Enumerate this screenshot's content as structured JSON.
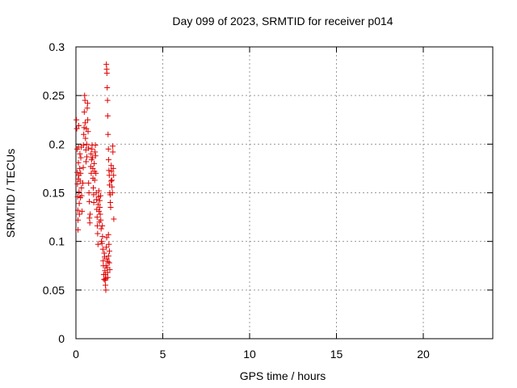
{
  "chart_data": {
    "type": "scatter",
    "title": "Day 099 of 2023, SRMTID for receiver p014",
    "xlabel": "GPS time / hours",
    "ylabel": "SRMTID / TECUs",
    "xlim": [
      0,
      24
    ],
    "ylim": [
      0,
      0.3
    ],
    "xticks": [
      "0",
      "5",
      "10",
      "15",
      "20"
    ],
    "yticks": [
      "0",
      "0.05",
      "0.1",
      "0.15",
      "0.2",
      "0.25",
      "0.3"
    ],
    "grid": true,
    "marker": "+",
    "color": "#e00000",
    "points": [
      [
        0.03,
        0.225
      ],
      [
        0.05,
        0.216
      ],
      [
        0.07,
        0.195
      ],
      [
        0.08,
        0.171
      ],
      [
        0.09,
        0.159
      ],
      [
        0.1,
        0.146
      ],
      [
        0.11,
        0.132
      ],
      [
        0.12,
        0.122
      ],
      [
        0.12,
        0.112
      ],
      [
        0.13,
        0.164
      ],
      [
        0.14,
        0.181
      ],
      [
        0.15,
        0.197
      ],
      [
        0.16,
        0.219
      ],
      [
        0.17,
        0.168
      ],
      [
        0.18,
        0.151
      ],
      [
        0.19,
        0.139
      ],
      [
        0.2,
        0.128
      ],
      [
        0.22,
        0.175
      ],
      [
        0.23,
        0.19
      ],
      [
        0.24,
        0.162
      ],
      [
        0.25,
        0.145
      ],
      [
        0.27,
        0.17
      ],
      [
        0.28,
        0.186
      ],
      [
        0.3,
        0.197
      ],
      [
        0.32,
        0.155
      ],
      [
        0.33,
        0.147
      ],
      [
        0.35,
        0.131
      ],
      [
        0.4,
        0.16
      ],
      [
        0.42,
        0.176
      ],
      [
        0.43,
        0.199
      ],
      [
        0.45,
        0.21
      ],
      [
        0.47,
        0.217
      ],
      [
        0.48,
        0.233
      ],
      [
        0.5,
        0.25
      ],
      [
        0.52,
        0.245
      ],
      [
        0.53,
        0.222
      ],
      [
        0.55,
        0.206
      ],
      [
        0.57,
        0.194
      ],
      [
        0.58,
        0.182
      ],
      [
        0.6,
        0.216
      ],
      [
        0.62,
        0.2
      ],
      [
        0.63,
        0.187
      ],
      [
        0.65,
        0.237
      ],
      [
        0.67,
        0.242
      ],
      [
        0.68,
        0.225
      ],
      [
        0.7,
        0.213
      ],
      [
        0.72,
        0.196
      ],
      [
        0.73,
        0.16
      ],
      [
        0.75,
        0.15
      ],
      [
        0.77,
        0.141
      ],
      [
        0.78,
        0.124
      ],
      [
        0.8,
        0.119
      ],
      [
        0.82,
        0.128
      ],
      [
        0.85,
        0.177
      ],
      [
        0.87,
        0.19
      ],
      [
        0.88,
        0.17
      ],
      [
        0.9,
        0.184
      ],
      [
        0.92,
        0.195
      ],
      [
        0.93,
        0.199
      ],
      [
        0.95,
        0.186
      ],
      [
        0.97,
        0.175
      ],
      [
        0.98,
        0.165
      ],
      [
        1.0,
        0.155
      ],
      [
        1.02,
        0.148
      ],
      [
        1.03,
        0.14
      ],
      [
        1.05,
        0.18
      ],
      [
        1.07,
        0.172
      ],
      [
        1.08,
        0.163
      ],
      [
        1.1,
        0.192
      ],
      [
        1.12,
        0.199
      ],
      [
        1.13,
        0.188
      ],
      [
        1.15,
        0.17
      ],
      [
        1.17,
        0.15
      ],
      [
        1.18,
        0.143
      ],
      [
        1.2,
        0.133
      ],
      [
        1.22,
        0.125
      ],
      [
        1.23,
        0.116
      ],
      [
        1.25,
        0.108
      ],
      [
        1.27,
        0.097
      ],
      [
        1.28,
        0.138
      ],
      [
        1.3,
        0.146
      ],
      [
        1.32,
        0.152
      ],
      [
        1.33,
        0.131
      ],
      [
        1.35,
        0.12
      ],
      [
        1.37,
        0.142
      ],
      [
        1.38,
        0.135
      ],
      [
        1.4,
        0.128
      ],
      [
        1.42,
        0.147
      ],
      [
        1.43,
        0.122
      ],
      [
        1.45,
        0.113
      ],
      [
        1.47,
        0.1
      ],
      [
        1.5,
        0.098
      ],
      [
        1.52,
        0.116
      ],
      [
        1.53,
        0.105
      ],
      [
        1.55,
        0.092
      ],
      [
        1.57,
        0.08
      ],
      [
        1.58,
        0.075
      ],
      [
        1.6,
        0.066
      ],
      [
        1.62,
        0.061
      ],
      [
        1.63,
        0.088
      ],
      [
        1.65,
        0.084
      ],
      [
        1.67,
        0.07
      ],
      [
        1.68,
        0.06
      ],
      [
        1.7,
        0.055
      ],
      [
        1.72,
        0.05
      ],
      [
        1.73,
        0.075
      ],
      [
        1.75,
        0.094
      ],
      [
        1.77,
        0.104
      ],
      [
        1.78,
        0.082
      ],
      [
        1.8,
        0.073
      ],
      [
        1.82,
        0.068
      ],
      [
        1.83,
        0.063
      ],
      [
        1.85,
        0.079
      ],
      [
        1.87,
        0.107
      ],
      [
        1.88,
        0.085
      ],
      [
        1.9,
        0.097
      ],
      [
        1.92,
        0.078
      ],
      [
        1.75,
        0.282
      ],
      [
        1.77,
        0.277
      ],
      [
        1.78,
        0.273
      ],
      [
        1.8,
        0.258
      ],
      [
        1.82,
        0.245
      ],
      [
        1.83,
        0.229
      ],
      [
        1.85,
        0.21
      ],
      [
        1.87,
        0.195
      ],
      [
        1.88,
        0.184
      ],
      [
        1.9,
        0.173
      ],
      [
        1.92,
        0.168
      ],
      [
        1.93,
        0.158
      ],
      [
        1.95,
        0.15
      ],
      [
        1.97,
        0.148
      ],
      [
        1.98,
        0.14
      ],
      [
        2.0,
        0.135
      ],
      [
        2.02,
        0.162
      ],
      [
        2.03,
        0.178
      ],
      [
        2.05,
        0.172
      ],
      [
        2.07,
        0.163
      ],
      [
        2.08,
        0.156
      ],
      [
        2.1,
        0.15
      ],
      [
        2.12,
        0.198
      ],
      [
        2.13,
        0.192
      ],
      [
        2.15,
        0.175
      ],
      [
        2.17,
        0.168
      ],
      [
        2.18,
        0.123
      ],
      [
        1.7,
        0.066
      ],
      [
        1.72,
        0.062
      ],
      [
        1.93,
        0.09
      ],
      [
        1.95,
        0.071
      ]
    ]
  }
}
